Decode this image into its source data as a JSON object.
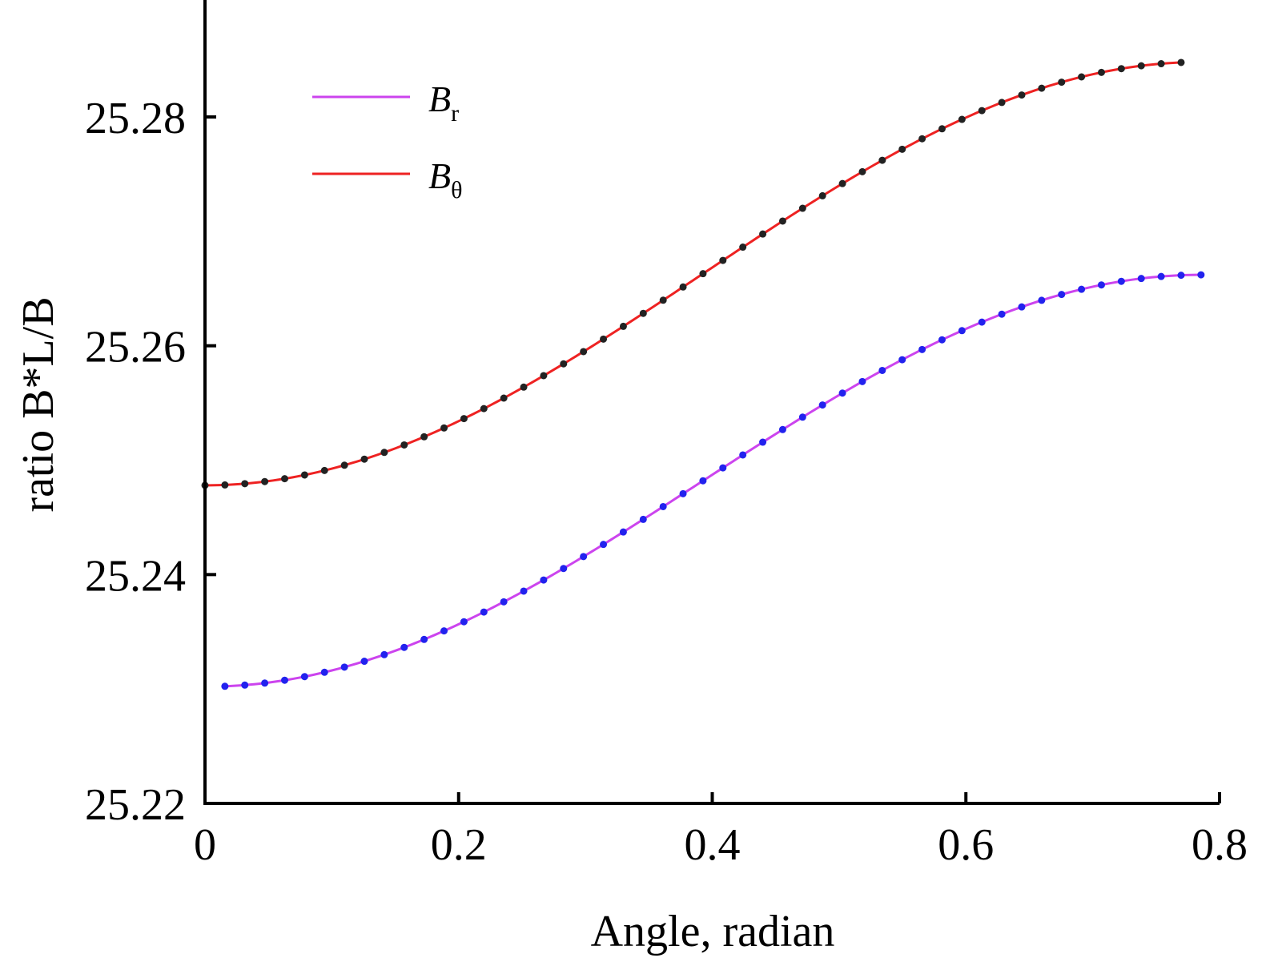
{
  "chart_data": {
    "type": "line",
    "title": "",
    "xlabel": "Angle, radian",
    "ylabel": "ratio B*L/B",
    "xlim": [
      0,
      0.8
    ],
    "ylim": [
      25.22,
      25.29
    ],
    "x_ticks": [
      0,
      0.2,
      0.4,
      0.6,
      0.8
    ],
    "x_tick_labels": [
      "0",
      "0.2",
      "0.4",
      "0.6",
      "0.8"
    ],
    "y_ticks": [
      25.22,
      25.24,
      25.26,
      25.28
    ],
    "y_tick_labels": [
      "25.22",
      "25.24",
      "25.26",
      "25.28"
    ],
    "grid": false,
    "legend_position": "top-left",
    "series": [
      {
        "name": "B_r",
        "legend_main": "B",
        "legend_sub": "r",
        "line_color": "#cc44ee",
        "marker_color": "#2222ee",
        "x_start": 0.0157,
        "x_end": 0.7854,
        "y_min": 25.2302,
        "y_max": 25.2662
      },
      {
        "name": "B_θ",
        "legend_main": "B",
        "legend_sub": "θ",
        "line_color": "#ee2222",
        "marker_color": "#222222",
        "x_start": 0.0,
        "x_end": 0.7697,
        "y_min": 25.2478,
        "y_max": 25.2848
      }
    ]
  }
}
